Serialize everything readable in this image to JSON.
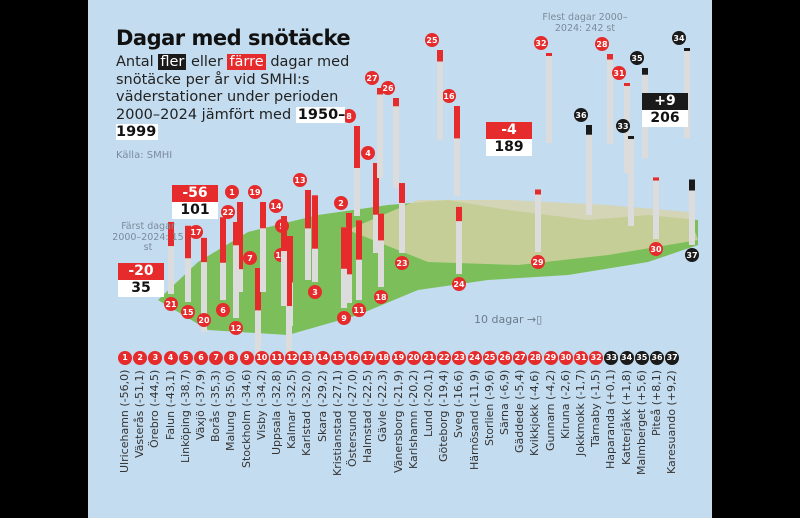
{
  "title": "Dagar med snötäcke",
  "subtitle": {
    "pre": "Antal",
    "more": "fler",
    "mid": "eller",
    "fewer": "färre",
    "rest": "dagar med snötäcke per år vid SMHI:s väderstationer under perioden 2000–2024 jämfört med",
    "period": "1950–1999"
  },
  "source": "Källa: SMHI",
  "colors": {
    "fewer": "#e52b2b",
    "more": "#1a1a1a",
    "background": "#c4dcef",
    "land": "#7cbf5a"
  },
  "annotations": {
    "most_days": "Flest dagar 2000–2024: 242 st",
    "fewest_days": "Färst dagar 2000–2024: 15 st",
    "scale": "10 dagar",
    "callouts": [
      {
        "change": "-56",
        "days": "101"
      },
      {
        "change": "-20",
        "days": "35"
      },
      {
        "change": "-4",
        "days": "189"
      },
      {
        "change": "+9",
        "days": "206"
      }
    ]
  },
  "chart_data": {
    "type": "bar",
    "title": "Dagar med snötäcke",
    "unit": "dagar",
    "stations": [
      {
        "n": 1,
        "name": "Ulricehamn",
        "change": -56.0
      },
      {
        "n": 2,
        "name": "Västerås",
        "change": -51.1
      },
      {
        "n": 3,
        "name": "Örebro",
        "change": -44.5
      },
      {
        "n": 4,
        "name": "Falun",
        "change": -43.1
      },
      {
        "n": 5,
        "name": "Linköping",
        "change": -38.7
      },
      {
        "n": 6,
        "name": "Växjö",
        "change": -37.9
      },
      {
        "n": 7,
        "name": "Borås",
        "change": -35.3
      },
      {
        "n": 8,
        "name": "Malung",
        "change": -35.0
      },
      {
        "n": 9,
        "name": "Stockholm",
        "change": -34.6
      },
      {
        "n": 10,
        "name": "Visby",
        "change": -34.2
      },
      {
        "n": 11,
        "name": "Uppsala",
        "change": -32.8
      },
      {
        "n": 12,
        "name": "Kalmar",
        "change": -32.5
      },
      {
        "n": 13,
        "name": "Karlstad",
        "change": -32.0
      },
      {
        "n": 14,
        "name": "Skara",
        "change": -29.2
      },
      {
        "n": 15,
        "name": "Kristianstad",
        "change": -27.1
      },
      {
        "n": 16,
        "name": "Östersund",
        "change": -27.0
      },
      {
        "n": 17,
        "name": "Halmstad",
        "change": -22.5
      },
      {
        "n": 18,
        "name": "Gävle",
        "change": -22.3
      },
      {
        "n": 19,
        "name": "Vänersborg",
        "change": -21.9
      },
      {
        "n": 20,
        "name": "Karlshamn",
        "change": -20.2
      },
      {
        "n": 21,
        "name": "Lund",
        "change": -20.1
      },
      {
        "n": 22,
        "name": "Göteborg",
        "change": -19.4
      },
      {
        "n": 23,
        "name": "Sveg",
        "change": -16.6
      },
      {
        "n": 24,
        "name": "Härnösand",
        "change": -11.9
      },
      {
        "n": 25,
        "name": "Storlien",
        "change": -9.6
      },
      {
        "n": 26,
        "name": "Särna",
        "change": -6.9
      },
      {
        "n": 27,
        "name": "Gäddede",
        "change": -5.4
      },
      {
        "n": 28,
        "name": "Kvikkjokk",
        "change": -4.6
      },
      {
        "n": 29,
        "name": "Gunnarn",
        "change": -4.2
      },
      {
        "n": 30,
        "name": "Kiruna",
        "change": -2.6
      },
      {
        "n": 31,
        "name": "Jokkmokk",
        "change": -1.7
      },
      {
        "n": 32,
        "name": "Tärnaby",
        "change": -1.5
      },
      {
        "n": 33,
        "name": "Haparanda",
        "change": 0.1
      },
      {
        "n": 34,
        "name": "Katterjåkk",
        "change": 1.8
      },
      {
        "n": 35,
        "name": "Malmberget",
        "change": 5.6
      },
      {
        "n": 36,
        "name": "Piteå",
        "change": 8.1
      },
      {
        "n": 37,
        "name": "Karesuando",
        "change": 9.2
      }
    ]
  }
}
